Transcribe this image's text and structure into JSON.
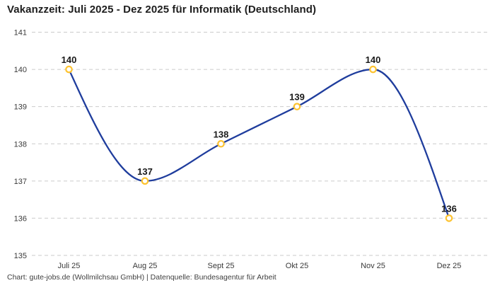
{
  "chart_data": {
    "type": "line",
    "title": "Vakanzzeit: Juli 2025 - Dez 2025 für Informatik (Deutschland)",
    "categories": [
      "Juli 25",
      "Aug 25",
      "Sept 25",
      "Okt 25",
      "Nov 25",
      "Dez 25"
    ],
    "values": [
      140,
      137,
      138,
      139,
      140,
      136
    ],
    "xlabel": "",
    "ylabel": "",
    "ylim": [
      135,
      141
    ],
    "yticks": [
      135,
      136,
      137,
      138,
      139,
      140,
      141
    ],
    "grid": "dashed-horizontal",
    "legend": false,
    "curve": "monotone-x",
    "point_labels_visible": true,
    "colors": {
      "line": "#1f3d9d",
      "marker_stroke": "#fdc331",
      "marker_fill": "#ffffff",
      "grid": "#cbcbcb",
      "tick_text": "#3a3a3a",
      "point_label_text": "#191919",
      "title_text": "#1e1e1e",
      "footer_text": "#3f3f3f",
      "background": "#ffffff"
    }
  },
  "footer": {
    "text": "Chart: gute-jobs.de (Wollmilchsau GmbH) | Datenquelle: Bundesagentur für Arbeit"
  }
}
